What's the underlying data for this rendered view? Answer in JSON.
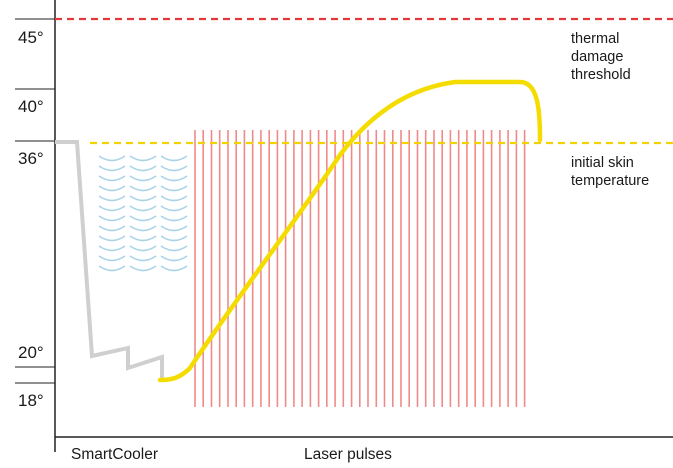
{
  "y_labels": {
    "t45": "45°",
    "t40": "40°",
    "t36": "36°",
    "t20": "20°",
    "t18": "18°"
  },
  "annotations": {
    "threshold": [
      "thermal",
      "damage",
      "threshold"
    ],
    "initial": [
      "initial skin",
      "temperature"
    ]
  },
  "x_labels": {
    "cooler": "SmartCooler",
    "laser": "Laser pulses"
  },
  "colors": {
    "threshold_line": "#e23a3a",
    "initial_line": "#f2d200",
    "skin_temp_curve": "#f5dc00",
    "cooler_curve": "#cfcfcf",
    "laser_pulses": "#f08a8a",
    "cooling_waves": "#a9d3e8",
    "axis": "#222222"
  },
  "legend_icons": {
    "cooling": "cooling-wave-icon",
    "laser": "laser-pulse-line"
  }
}
